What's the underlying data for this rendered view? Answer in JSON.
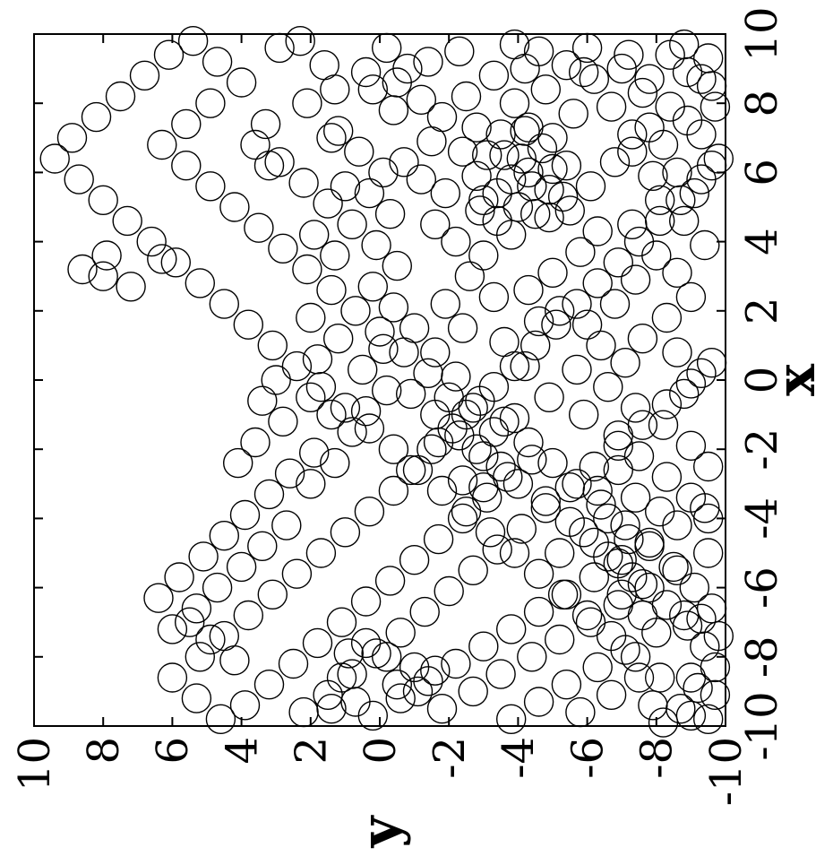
{
  "chart_data": {
    "type": "scatter",
    "marker": "open-circle",
    "color": "#000000",
    "xlabel": "x",
    "ylabel": "y",
    "xlim": [
      -10,
      10
    ],
    "ylim": [
      -10,
      10
    ],
    "xticks": [
      -10,
      -8,
      -6,
      -4,
      -2,
      0,
      2,
      4,
      6,
      8,
      10
    ],
    "yticks": [
      -10,
      -8,
      -6,
      -4,
      -2,
      0,
      2,
      4,
      6,
      8,
      10
    ],
    "x_tick_labels": [
      "-10",
      "-8",
      "-6",
      "-4",
      "-2",
      "0",
      "2",
      "4",
      "6",
      "8",
      "10"
    ],
    "y_tick_labels": [
      "-10",
      "-8",
      "-6",
      "-4",
      "-2",
      "0",
      "2",
      "4",
      "6",
      "8",
      "10"
    ],
    "grid": false,
    "rotated": "90deg-counterclockwise",
    "points": [
      [
        3.2,
        8.6
      ],
      [
        3.6,
        7.9
      ],
      [
        3.0,
        8.0
      ],
      [
        2.7,
        7.2
      ],
      [
        3.5,
        6.3
      ],
      [
        9.8,
        2.3
      ],
      [
        9.6,
        2.9
      ],
      [
        9.1,
        1.6
      ],
      [
        8.4,
        1.3
      ],
      [
        8.0,
        2.1
      ],
      [
        7.4,
        3.3
      ],
      [
        6.8,
        3.6
      ],
      [
        6.2,
        3.2
      ],
      [
        7.0,
        1.4
      ],
      [
        5.6,
        1.0
      ],
      [
        8.9,
        0.4
      ],
      [
        8.6,
        -0.5
      ],
      [
        8.1,
        -1.2
      ],
      [
        7.6,
        -1.8
      ],
      [
        6.9,
        -1.5
      ],
      [
        6.3,
        -0.7
      ],
      [
        5.8,
        -1.2
      ],
      [
        5.4,
        -1.9
      ],
      [
        6.6,
        -2.4
      ],
      [
        7.3,
        -2.8
      ],
      [
        8.2,
        -2.5
      ],
      [
        9.2,
        -1.4
      ],
      [
        9.5,
        -2.3
      ],
      [
        8.8,
        -3.3
      ],
      [
        8.0,
        -3.9
      ],
      [
        7.2,
        -4.2
      ],
      [
        6.5,
        -3.6
      ],
      [
        6.0,
        -4.3
      ],
      [
        5.4,
        -3.4
      ],
      [
        4.9,
        -2.9
      ],
      [
        4.5,
        -1.6
      ],
      [
        4.0,
        -2.2
      ],
      [
        3.6,
        -3.0
      ],
      [
        4.2,
        -3.8
      ],
      [
        4.8,
        -4.5
      ],
      [
        5.5,
        -4.9
      ],
      [
        6.2,
        -5.4
      ],
      [
        7.0,
        -5.0
      ],
      [
        7.7,
        -5.6
      ],
      [
        8.4,
        -4.8
      ],
      [
        9.0,
        -4.2
      ],
      [
        8.7,
        -6.2
      ],
      [
        7.9,
        -6.7
      ],
      [
        7.1,
        -7.3
      ],
      [
        6.3,
        -6.8
      ],
      [
        5.6,
        -6.1
      ],
      [
        4.9,
        -5.5
      ],
      [
        4.3,
        -6.3
      ],
      [
        3.7,
        -5.8
      ],
      [
        3.1,
        -5.0
      ],
      [
        2.6,
        -4.3
      ],
      [
        2.0,
        -5.2
      ],
      [
        1.6,
        -6.0
      ],
      [
        2.2,
        -6.8
      ],
      [
        2.9,
        -7.4
      ],
      [
        3.6,
        -8.0
      ],
      [
        4.5,
        -7.3
      ],
      [
        5.2,
        -8.1
      ],
      [
        6.0,
        -8.6
      ],
      [
        6.8,
        -8.2
      ],
      [
        7.5,
        -8.9
      ],
      [
        8.3,
        -7.6
      ],
      [
        9.0,
        -7.0
      ],
      [
        9.6,
        -6.0
      ],
      [
        9.4,
        -8.4
      ],
      [
        8.7,
        -9.3
      ],
      [
        7.9,
        -9.7
      ],
      [
        7.1,
        -9.3
      ],
      [
        6.2,
        -9.6
      ],
      [
        5.4,
        -9.1
      ],
      [
        4.6,
        -8.8
      ],
      [
        3.9,
        -9.4
      ],
      [
        3.1,
        -8.6
      ],
      [
        2.4,
        -9.0
      ],
      [
        1.8,
        -8.3
      ],
      [
        1.2,
        -7.6
      ],
      [
        0.8,
        -8.6
      ],
      [
        0.2,
        -9.3
      ],
      [
        -0.4,
        -8.8
      ],
      [
        0.5,
        -7.1
      ],
      [
        1.0,
        -6.4
      ],
      [
        0.3,
        -5.7
      ],
      [
        -0.2,
        -6.6
      ],
      [
        -0.8,
        -7.4
      ],
      [
        -1.3,
        -8.2
      ],
      [
        -1.9,
        -9.0
      ],
      [
        -2.5,
        -9.5
      ],
      [
        -1.6,
        -6.9
      ],
      [
        -1.0,
        -5.9
      ],
      [
        -0.5,
        -4.9
      ],
      [
        0.4,
        -4.2
      ],
      [
        1.1,
        -3.6
      ],
      [
        1.7,
        -4.6
      ],
      [
        2.4,
        -3.3
      ],
      [
        3.0,
        -2.6
      ],
      [
        2.2,
        -1.9
      ],
      [
        1.5,
        -2.4
      ],
      [
        0.8,
        -1.6
      ],
      [
        0.1,
        -2.2
      ],
      [
        -0.6,
        -2.9
      ],
      [
        -1.2,
        -3.6
      ],
      [
        -1.8,
        -4.3
      ],
      [
        -2.4,
        -5.0
      ],
      [
        -3.0,
        -5.7
      ],
      [
        -3.6,
        -6.4
      ],
      [
        -4.2,
        -7.1
      ],
      [
        -4.8,
        -7.8
      ],
      [
        -5.4,
        -8.5
      ],
      [
        -6.0,
        -9.1
      ],
      [
        -6.6,
        -9.6
      ],
      [
        -2.2,
        -7.5
      ],
      [
        -2.8,
        -8.3
      ],
      [
        -3.4,
        -9.0
      ],
      [
        -4.0,
        -9.5
      ],
      [
        -3.0,
        -4.0
      ],
      [
        -3.5,
        -4.8
      ],
      [
        -4.1,
        -5.5
      ],
      [
        -4.7,
        -6.2
      ],
      [
        -5.3,
        -6.9
      ],
      [
        -5.9,
        -7.6
      ],
      [
        -6.5,
        -8.3
      ],
      [
        -7.1,
        -8.9
      ],
      [
        -7.7,
        -9.4
      ],
      [
        -8.3,
        -9.7
      ],
      [
        -8.9,
        -9.2
      ],
      [
        -9.5,
        -8.7
      ],
      [
        -9.8,
        -9.5
      ],
      [
        -8.6,
        -8.1
      ],
      [
        -8.0,
        -7.4
      ],
      [
        -7.4,
        -6.7
      ],
      [
        -6.8,
        -6.0
      ],
      [
        -6.2,
        -5.3
      ],
      [
        -5.6,
        -4.6
      ],
      [
        -5.0,
        -3.9
      ],
      [
        -4.4,
        -3.2
      ],
      [
        -3.8,
        -2.5
      ],
      [
        -3.2,
        -1.8
      ],
      [
        -2.6,
        -1.1
      ],
      [
        -2.0,
        -0.4
      ],
      [
        -1.4,
        0.3
      ],
      [
        -0.8,
        1.0
      ],
      [
        -0.2,
        1.7
      ],
      [
        0.4,
        2.4
      ],
      [
        1.0,
        3.1
      ],
      [
        1.6,
        3.8
      ],
      [
        2.2,
        4.5
      ],
      [
        2.8,
        5.2
      ],
      [
        3.4,
        5.9
      ],
      [
        4.0,
        6.6
      ],
      [
        4.6,
        7.3
      ],
      [
        5.2,
        8.0
      ],
      [
        5.8,
        8.7
      ],
      [
        6.4,
        9.4
      ],
      [
        7.0,
        8.9
      ],
      [
        7.6,
        8.2
      ],
      [
        8.2,
        7.5
      ],
      [
        8.8,
        6.8
      ],
      [
        9.4,
        6.1
      ],
      [
        9.8,
        5.4
      ],
      [
        9.2,
        4.7
      ],
      [
        8.6,
        4.0
      ],
      [
        8.0,
        4.9
      ],
      [
        7.4,
        5.6
      ],
      [
        6.8,
        6.3
      ],
      [
        6.2,
        5.6
      ],
      [
        5.6,
        4.9
      ],
      [
        5.0,
        4.2
      ],
      [
        4.4,
        3.5
      ],
      [
        3.8,
        2.8
      ],
      [
        3.2,
        2.1
      ],
      [
        2.6,
        1.4
      ],
      [
        2.0,
        0.7
      ],
      [
        1.4,
        0.0
      ],
      [
        0.8,
        -0.7
      ],
      [
        0.2,
        -1.4
      ],
      [
        -0.4,
        -0.9
      ],
      [
        -1.0,
        -1.6
      ],
      [
        -1.6,
        -2.3
      ],
      [
        -2.2,
        -3.0
      ],
      [
        -2.8,
        -3.7
      ],
      [
        -3.4,
        -3.1
      ],
      [
        -4.0,
        -2.4
      ],
      [
        -4.6,
        -1.7
      ],
      [
        -5.2,
        -1.0
      ],
      [
        -5.8,
        -0.3
      ],
      [
        -6.4,
        0.4
      ],
      [
        -7.0,
        1.1
      ],
      [
        -7.6,
        1.8
      ],
      [
        -8.2,
        2.5
      ],
      [
        -8.8,
        3.2
      ],
      [
        -9.4,
        3.9
      ],
      [
        -9.8,
        4.6
      ],
      [
        -9.2,
        5.3
      ],
      [
        -8.6,
        6.0
      ],
      [
        -8.0,
        5.2
      ],
      [
        -7.4,
        4.5
      ],
      [
        -6.8,
        3.8
      ],
      [
        -6.2,
        3.1
      ],
      [
        -5.6,
        2.4
      ],
      [
        -5.0,
        1.7
      ],
      [
        -4.4,
        1.0
      ],
      [
        -3.8,
        0.3
      ],
      [
        -3.2,
        -0.4
      ],
      [
        -2.6,
        -0.9
      ],
      [
        -2.0,
        -1.5
      ],
      [
        -1.4,
        -2.1
      ],
      [
        -0.8,
        -2.7
      ],
      [
        -0.2,
        -3.3
      ],
      [
        0.4,
        -3.9
      ],
      [
        1.0,
        -4.5
      ],
      [
        1.6,
        -5.1
      ],
      [
        2.2,
        -5.7
      ],
      [
        2.8,
        -6.3
      ],
      [
        3.4,
        -6.9
      ],
      [
        4.0,
        -7.5
      ],
      [
        4.6,
        -8.1
      ],
      [
        5.2,
        -8.7
      ],
      [
        5.8,
        -9.3
      ],
      [
        6.4,
        -9.8
      ],
      [
        -9.6,
        2.2
      ],
      [
        -9.1,
        1.5
      ],
      [
        -8.5,
        0.8
      ],
      [
        -7.9,
        0.1
      ],
      [
        -7.3,
        -0.6
      ],
      [
        -6.7,
        -1.3
      ],
      [
        -6.1,
        -2.0
      ],
      [
        -5.5,
        -2.7
      ],
      [
        -4.9,
        -3.4
      ],
      [
        -4.3,
        -4.1
      ],
      [
        -3.7,
        -4.8
      ],
      [
        -3.1,
        -5.5
      ],
      [
        -2.5,
        -6.2
      ],
      [
        -1.9,
        -6.9
      ],
      [
        -1.3,
        -7.6
      ],
      [
        -0.7,
        -8.3
      ],
      [
        -0.1,
        -9.0
      ],
      [
        0.5,
        -9.6
      ],
      [
        -9.7,
        0.2
      ],
      [
        -9.2,
        -0.6
      ],
      [
        -8.7,
        -1.4
      ],
      [
        -8.2,
        -2.2
      ],
      [
        -7.7,
        -3.0
      ],
      [
        -7.2,
        -3.8
      ],
      [
        -6.7,
        -4.6
      ],
      [
        -6.2,
        -5.4
      ],
      [
        -5.7,
        -6.2
      ],
      [
        -5.2,
        -7.0
      ],
      [
        -4.7,
        -7.8
      ],
      [
        -4.2,
        -8.6
      ],
      [
        -3.7,
        -9.4
      ],
      [
        -9.5,
        -1.8
      ],
      [
        -9.0,
        -2.7
      ],
      [
        -8.5,
        -3.5
      ],
      [
        -8.0,
        -4.4
      ],
      [
        -7.5,
        -5.2
      ],
      [
        -7.0,
        -6.1
      ],
      [
        -6.5,
        -6.9
      ],
      [
        -6.0,
        -7.8
      ],
      [
        -5.5,
        -8.6
      ],
      [
        -5.0,
        -9.5
      ],
      [
        -9.8,
        -3.8
      ],
      [
        -9.3,
        -4.6
      ],
      [
        -8.8,
        -5.4
      ],
      [
        -8.3,
        -6.3
      ],
      [
        -7.8,
        -7.1
      ],
      [
        -7.3,
        -8.0
      ],
      [
        -6.8,
        -8.8
      ],
      [
        -9.6,
        -5.8
      ],
      [
        -9.1,
        -6.7
      ],
      [
        -8.6,
        -7.5
      ],
      [
        -9.4,
        -7.9
      ],
      [
        -1.5,
        0.8
      ],
      [
        -1.0,
        1.4
      ],
      [
        -0.5,
        2.0
      ],
      [
        -2.1,
        1.9
      ],
      [
        -2.7,
        2.6
      ],
      [
        -3.3,
        3.2
      ],
      [
        -3.9,
        3.9
      ],
      [
        -4.5,
        4.5
      ],
      [
        -5.1,
        5.1
      ],
      [
        -5.7,
        5.8
      ],
      [
        -6.3,
        6.4
      ],
      [
        -7.0,
        5.5
      ],
      [
        -7.5,
        4.9
      ],
      [
        -8.1,
        4.2
      ],
      [
        -3.0,
        2.0
      ],
      [
        -2.4,
        1.3
      ],
      [
        -4.2,
        2.7
      ],
      [
        -4.8,
        3.4
      ],
      [
        -5.4,
        4.0
      ],
      [
        -6.0,
        4.7
      ],
      [
        -6.6,
        5.3
      ],
      [
        -7.2,
        6.0
      ],
      [
        -1.2,
        2.8
      ],
      [
        -0.6,
        3.4
      ],
      [
        0.0,
        3.0
      ],
      [
        -1.8,
        3.6
      ],
      [
        -2.4,
        4.1
      ],
      [
        0.6,
        1.8
      ],
      [
        1.2,
        1.2
      ],
      [
        1.8,
        2.0
      ],
      [
        0.9,
        -0.1
      ],
      [
        0.3,
        0.5
      ],
      [
        -0.3,
        -0.2
      ],
      [
        -0.9,
        0.4
      ],
      [
        1.5,
        -1.0
      ],
      [
        2.1,
        -0.4
      ],
      [
        2.7,
        0.2
      ],
      [
        3.3,
        -0.5
      ],
      [
        3.9,
        0.1
      ],
      [
        4.5,
        0.8
      ],
      [
        5.1,
        1.5
      ],
      [
        5.7,
        2.2
      ],
      [
        6.3,
        2.9
      ],
      [
        4.8,
        -0.3
      ],
      [
        5.4,
        0.3
      ],
      [
        6.0,
        -0.1
      ],
      [
        6.6,
        0.6
      ],
      [
        7.2,
        1.2
      ],
      [
        7.8,
        -0.4
      ],
      [
        8.4,
        0.2
      ],
      [
        9.0,
        -0.8
      ],
      [
        9.6,
        -0.2
      ],
      [
        4.2,
        1.9
      ],
      [
        3.6,
        1.3
      ],
      [
        5.9,
        -2.8
      ],
      [
        6.5,
        -3.1
      ],
      [
        7.1,
        -3.5
      ],
      [
        5.2,
        -3.0
      ],
      [
        4.6,
        -3.4
      ],
      [
        5.8,
        -3.8
      ],
      [
        6.4,
        -4.1
      ],
      [
        5.0,
        -4.0
      ],
      [
        5.6,
        -4.4
      ],
      [
        6.1,
        -5.0
      ],
      [
        5.3,
        -5.3
      ],
      [
        4.7,
        -4.9
      ],
      [
        6.7,
        -4.7
      ],
      [
        7.3,
        -4.3
      ],
      [
        -3.4,
        -7.4
      ],
      [
        -4.0,
        -6.6
      ],
      [
        -4.6,
        -7.2
      ],
      [
        -3.8,
        -8.1
      ],
      [
        -5.1,
        -6.6
      ],
      [
        -5.7,
        -7.3
      ],
      [
        -4.4,
        -5.9
      ],
      [
        -5.0,
        -5.2
      ],
      [
        -3.2,
        -6.3
      ],
      [
        -2.6,
        -6.9
      ],
      [
        -6.2,
        -7.0
      ],
      [
        -6.8,
        -7.6
      ],
      [
        -2.0,
        -2.8
      ],
      [
        -2.5,
        -3.5
      ],
      [
        -1.5,
        -3.3
      ],
      [
        -1.0,
        -2.5
      ],
      [
        -2.9,
        -2.4
      ],
      [
        -1.8,
        -1.7
      ],
      [
        -1.1,
        -3.9
      ],
      [
        -2.3,
        -4.4
      ],
      [
        -3.1,
        -3.0
      ],
      [
        -0.5,
        -2.0
      ],
      [
        -8.8,
        -0.5
      ],
      [
        -8.3,
        -1.0
      ],
      [
        -9.3,
        0.7
      ],
      [
        -8.6,
        1.1
      ],
      [
        -9.0,
        -1.1
      ],
      [
        -8.0,
        -0.2
      ],
      [
        -7.6,
        0.4
      ],
      [
        -9.5,
        1.4
      ],
      [
        -8.4,
        -1.6
      ],
      [
        -7.9,
        0.9
      ],
      [
        8.9,
        -8.9
      ],
      [
        9.3,
        -9.5
      ],
      [
        8.5,
        -9.6
      ],
      [
        9.7,
        -8.8
      ],
      [
        -9.7,
        -9.0
      ],
      [
        -9.1,
        -9.7
      ],
      [
        -8.6,
        -9.0
      ],
      [
        -9.9,
        -8.2
      ],
      [
        -7.4,
        -9.8
      ],
      [
        -6.9,
        -9.3
      ],
      [
        9.5,
        -4.6
      ],
      [
        9.1,
        -5.4
      ],
      [
        9.7,
        -3.9
      ],
      [
        8.9,
        -5.9
      ],
      [
        9.4,
        -7.2
      ],
      [
        8.7,
        -7.8
      ],
      [
        7.9,
        -8.4
      ],
      [
        7.3,
        -7.8
      ],
      [
        6.6,
        -7.3
      ],
      [
        5.9,
        -7.9
      ]
    ]
  }
}
